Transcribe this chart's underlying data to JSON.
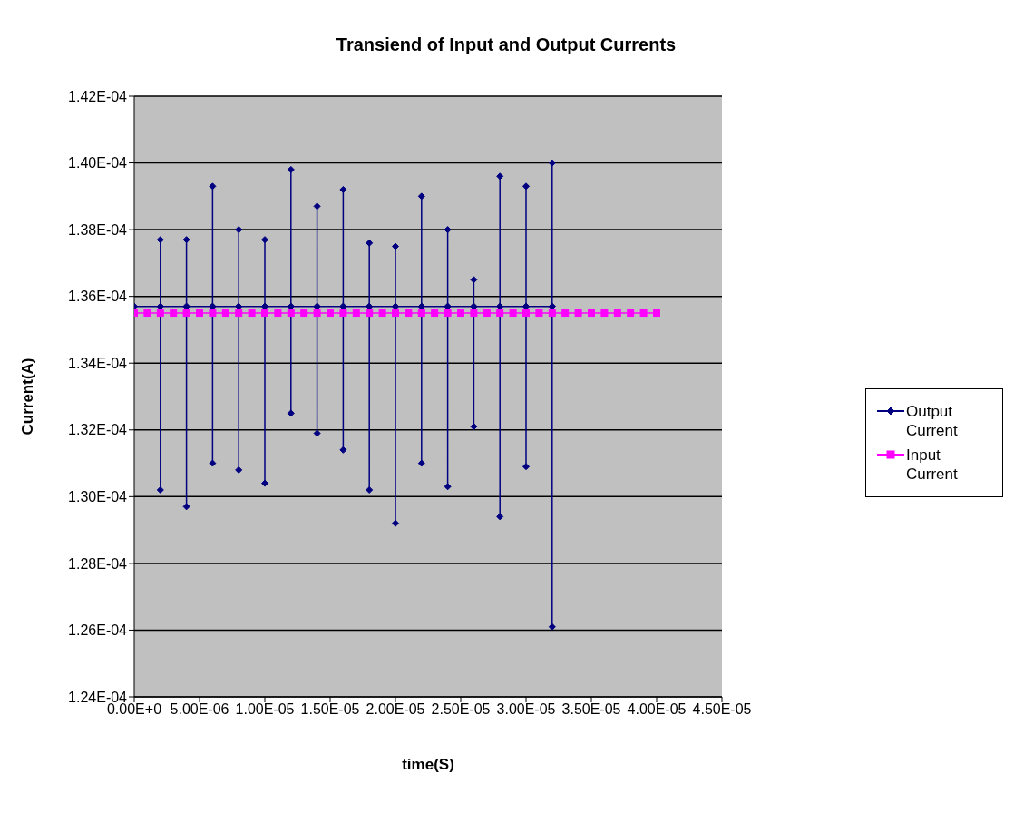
{
  "chart_data": {
    "type": "line",
    "title": "Transiend of Input and Output Currents",
    "xlabel": "time(S)",
    "ylabel": "Current(A)",
    "xlim": [
      0,
      4.5e-05
    ],
    "xticks": [
      {
        "value": 0,
        "label": "0.00E+0"
      },
      {
        "value": 5e-06,
        "label": "5.00E-06"
      },
      {
        "value": 1e-05,
        "label": "1.00E-05"
      },
      {
        "value": 1.5e-05,
        "label": "1.50E-05"
      },
      {
        "value": 2e-05,
        "label": "2.00E-05"
      },
      {
        "value": 2.5e-05,
        "label": "2.50E-05"
      },
      {
        "value": 3e-05,
        "label": "3.00E-05"
      },
      {
        "value": 3.5e-05,
        "label": "3.50E-05"
      },
      {
        "value": 4e-05,
        "label": "4.00E-05"
      },
      {
        "value": 4.5e-05,
        "label": "4.50E-05"
      }
    ],
    "ylim": [
      0.000124,
      0.000142
    ],
    "yticks": [
      {
        "value": 0.000124,
        "label": "1.24E-04"
      },
      {
        "value": 0.000126,
        "label": "1.26E-04"
      },
      {
        "value": 0.000128,
        "label": "1.28E-04"
      },
      {
        "value": 0.00013,
        "label": "1.30E-04"
      },
      {
        "value": 0.000132,
        "label": "1.32E-04"
      },
      {
        "value": 0.000134,
        "label": "1.34E-04"
      },
      {
        "value": 0.000136,
        "label": "1.36E-04"
      },
      {
        "value": 0.000138,
        "label": "1.38E-04"
      },
      {
        "value": 0.00014,
        "label": "1.40E-04"
      },
      {
        "value": 0.000142,
        "label": "1.42E-04"
      }
    ],
    "grid": "y",
    "legend": "right",
    "series": [
      {
        "name": "Output Current",
        "color": "#000080",
        "marker": "diamond",
        "x": [
          0,
          2e-06,
          2e-06,
          2e-06,
          2e-06,
          4e-06,
          4e-06,
          4e-06,
          4e-06,
          6e-06,
          6e-06,
          6e-06,
          6e-06,
          8e-06,
          8e-06,
          8e-06,
          8e-06,
          1e-05,
          1e-05,
          1e-05,
          1e-05,
          1.2e-05,
          1.2e-05,
          1.2e-05,
          1.2e-05,
          1.4e-05,
          1.4e-05,
          1.4e-05,
          1.4e-05,
          1.6e-05,
          1.6e-05,
          1.6e-05,
          1.6e-05,
          1.8e-05,
          1.8e-05,
          1.8e-05,
          1.8e-05,
          2e-05,
          2e-05,
          2e-05,
          2e-05,
          2.2e-05,
          2.2e-05,
          2.2e-05,
          2.2e-05,
          2.4e-05,
          2.4e-05,
          2.4e-05,
          2.4e-05,
          2.6e-05,
          2.6e-05,
          2.6e-05,
          2.6e-05,
          2.8e-05,
          2.8e-05,
          2.8e-05,
          2.8e-05,
          3e-05,
          3e-05,
          3e-05,
          3e-05,
          3.2e-05,
          3.2e-05,
          3.2e-05,
          3.2e-05
        ],
        "values": [
          0.0001357,
          0.0001357,
          0.0001377,
          0.0001302,
          0.0001357,
          0.0001357,
          0.0001377,
          0.0001297,
          0.0001357,
          0.0001357,
          0.0001393,
          0.000131,
          0.0001357,
          0.0001357,
          0.000138,
          0.0001308,
          0.0001357,
          0.0001357,
          0.0001377,
          0.0001304,
          0.0001357,
          0.0001357,
          0.0001398,
          0.0001325,
          0.0001357,
          0.0001357,
          0.0001387,
          0.0001319,
          0.0001357,
          0.0001357,
          0.0001392,
          0.0001314,
          0.0001357,
          0.0001357,
          0.0001376,
          0.0001302,
          0.0001357,
          0.0001357,
          0.0001375,
          0.0001292,
          0.0001357,
          0.0001357,
          0.000139,
          0.000131,
          0.0001357,
          0.0001357,
          0.000138,
          0.0001303,
          0.0001357,
          0.0001357,
          0.0001365,
          0.0001321,
          0.0001357,
          0.0001357,
          0.0001396,
          0.0001294,
          0.0001357,
          0.0001357,
          0.0001393,
          0.0001309,
          0.0001357,
          0.0001357,
          0.00014,
          0.0001261,
          0.0001357
        ]
      },
      {
        "name": "Input Current",
        "color": "#ff00ff",
        "marker": "square",
        "x": [
          0,
          1e-06,
          2e-06,
          3e-06,
          4e-06,
          5e-06,
          6e-06,
          7e-06,
          8e-06,
          9e-06,
          1e-05,
          1.1e-05,
          1.2e-05,
          1.3e-05,
          1.4e-05,
          1.5e-05,
          1.6e-05,
          1.7e-05,
          1.8e-05,
          1.9e-05,
          2e-05,
          2.1e-05,
          2.2e-05,
          2.3e-05,
          2.4e-05,
          2.5e-05,
          2.6e-05,
          2.7e-05,
          2.8e-05,
          2.9e-05,
          3e-05,
          3.1e-05,
          3.2e-05,
          3.3e-05,
          3.4e-05,
          3.5e-05,
          3.6e-05,
          3.7e-05,
          3.8e-05,
          3.9e-05,
          4e-05
        ],
        "values": [
          0.0001355,
          0.0001355,
          0.0001355,
          0.0001355,
          0.0001355,
          0.0001355,
          0.0001355,
          0.0001355,
          0.0001355,
          0.0001355,
          0.0001355,
          0.0001355,
          0.0001355,
          0.0001355,
          0.0001355,
          0.0001355,
          0.0001355,
          0.0001355,
          0.0001355,
          0.0001355,
          0.0001355,
          0.0001355,
          0.0001355,
          0.0001355,
          0.0001355,
          0.0001355,
          0.0001355,
          0.0001355,
          0.0001355,
          0.0001355,
          0.0001355,
          0.0001355,
          0.0001355,
          0.0001355,
          0.0001355,
          0.0001355,
          0.0001355,
          0.0001355,
          0.0001355,
          0.0001355,
          0.0001355
        ]
      }
    ]
  }
}
